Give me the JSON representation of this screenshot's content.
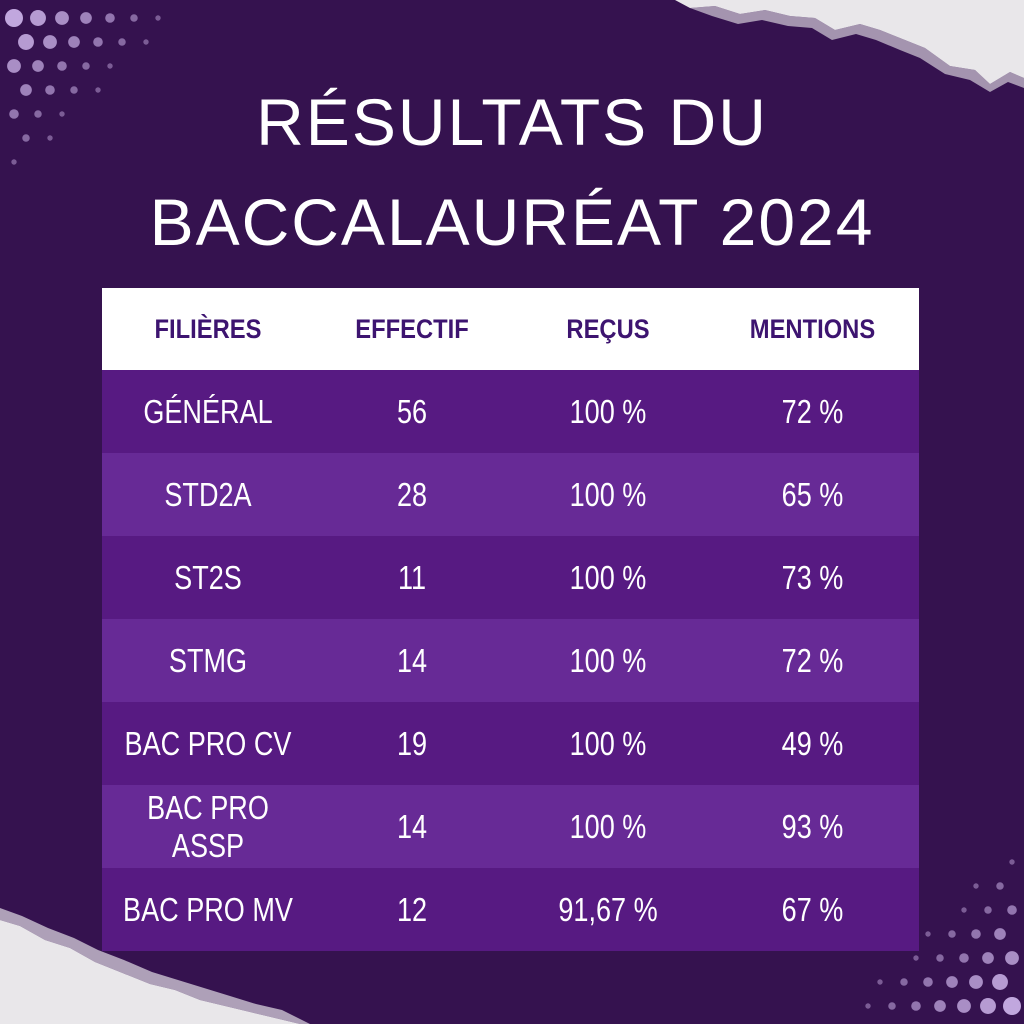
{
  "title": {
    "line1": "RÉSULTATS DU",
    "line2": "BACCALAURÉAT 2024"
  },
  "colors": {
    "background": "#35124f",
    "row_dark": "#571a82",
    "row_light": "#672a96",
    "header_text": "#3d1470",
    "dots": "#c9b0e6"
  },
  "table": {
    "headers": [
      "FILIÈRES",
      "EFFECTIF",
      "REÇUS",
      "MENTIONS"
    ],
    "rows": [
      [
        "GÉNÉRAL",
        "56",
        "100 %",
        "72 %"
      ],
      [
        "STD2A",
        "28",
        "100 %",
        "65 %"
      ],
      [
        "ST2S",
        "11",
        "100 %",
        "73 %"
      ],
      [
        "STMG",
        "14",
        "100 %",
        "72 %"
      ],
      [
        "BAC PRO CV",
        "19",
        "100 %",
        "49 %"
      ],
      [
        "BAC PRO ASSP",
        "14",
        "100 %",
        "93 %"
      ],
      [
        "BAC PRO MV",
        "12",
        "91,67 %",
        "67 %"
      ]
    ]
  }
}
